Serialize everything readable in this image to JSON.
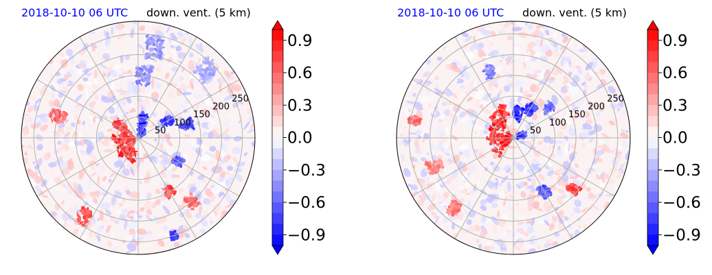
{
  "chart_data": [
    {
      "type": "heatmap",
      "projection": "polar",
      "title_date": "2018-10-10 06 UTC",
      "title_variable": "down. vent. (5 km)",
      "radial_ticks": [
        50,
        100,
        150,
        200,
        250
      ],
      "radial_max": 280,
      "angular_gridlines_deg": [
        0,
        30,
        60,
        90,
        120,
        150,
        180,
        210,
        240,
        270,
        300,
        330
      ],
      "colorbar": {
        "min": -1.0,
        "max": 1.0,
        "ticks": [
          "0.9",
          "0.6",
          "0.3",
          "0.0",
          "−0.3",
          "−0.6",
          "−0.9"
        ],
        "tick_values": [
          0.9,
          0.6,
          0.3,
          0.0,
          -0.3,
          -0.6,
          -0.9
        ],
        "colormap": "bwr",
        "extend": "both",
        "levels": 20
      },
      "features": [
        {
          "r": 35,
          "theta": 200,
          "value": 1.0,
          "size": 22
        },
        {
          "r": 40,
          "theta": 240,
          "value": 0.95,
          "size": 18
        },
        {
          "r": 28,
          "theta": 170,
          "value": 0.9,
          "size": 14
        },
        {
          "r": 55,
          "theta": 145,
          "value": 0.9,
          "size": 14
        },
        {
          "r": 20,
          "theta": 60,
          "value": -1.0,
          "size": 12
        },
        {
          "r": 45,
          "theta": 75,
          "value": -1.0,
          "size": 12
        },
        {
          "r": 80,
          "theta": 30,
          "value": -0.9,
          "size": 12
        },
        {
          "r": 120,
          "theta": 15,
          "value": -0.8,
          "size": 14
        },
        {
          "r": 150,
          "theta": 85,
          "value": -0.6,
          "size": 20
        },
        {
          "r": 220,
          "theta": 80,
          "value": -0.5,
          "size": 26
        },
        {
          "r": 230,
          "theta": 45,
          "value": -0.4,
          "size": 24
        },
        {
          "r": 200,
          "theta": 165,
          "value": 0.7,
          "size": 16
        },
        {
          "r": 230,
          "theta": 235,
          "value": 0.8,
          "size": 18
        },
        {
          "r": 150,
          "theta": 300,
          "value": 0.9,
          "size": 12
        },
        {
          "r": 200,
          "theta": 310,
          "value": 0.7,
          "size": 14
        },
        {
          "r": 110,
          "theta": 330,
          "value": -0.8,
          "size": 12
        },
        {
          "r": 250,
          "theta": 290,
          "value": -0.9,
          "size": 8
        }
      ],
      "seed": 11
    },
    {
      "type": "heatmap",
      "projection": "polar",
      "title_date": "2018-10-10 06 UTC",
      "title_variable": "down. vent. (5 km)",
      "radial_ticks": [
        50,
        100,
        150,
        200,
        250
      ],
      "radial_max": 280,
      "angular_gridlines_deg": [
        0,
        30,
        60,
        90,
        120,
        150,
        180,
        210,
        240,
        270,
        300,
        330
      ],
      "colorbar": {
        "min": -1.0,
        "max": 1.0,
        "ticks": [
          "0.9",
          "0.6",
          "0.3",
          "0.0",
          "−0.3",
          "−0.6",
          "−0.9"
        ],
        "tick_values": [
          0.9,
          0.6,
          0.3,
          0.0,
          -0.3,
          -0.6,
          -0.9
        ],
        "colormap": "bwr",
        "extend": "both",
        "levels": 20
      },
      "features": [
        {
          "r": 35,
          "theta": 160,
          "value": 1.0,
          "size": 26
        },
        {
          "r": 30,
          "theta": 200,
          "value": 1.0,
          "size": 24
        },
        {
          "r": 55,
          "theta": 130,
          "value": 0.95,
          "size": 18
        },
        {
          "r": 70,
          "theta": 110,
          "value": 0.9,
          "size": 14
        },
        {
          "r": 60,
          "theta": 80,
          "value": -1.0,
          "size": 14
        },
        {
          "r": 80,
          "theta": 60,
          "value": -0.9,
          "size": 14
        },
        {
          "r": 20,
          "theta": 20,
          "value": -1.0,
          "size": 10
        },
        {
          "r": 110,
          "theta": 40,
          "value": -0.7,
          "size": 12
        },
        {
          "r": 170,
          "theta": 110,
          "value": -0.6,
          "size": 14
        },
        {
          "r": 200,
          "theta": 200,
          "value": 0.6,
          "size": 18
        },
        {
          "r": 220,
          "theta": 230,
          "value": 0.6,
          "size": 16
        },
        {
          "r": 150,
          "theta": 300,
          "value": -0.8,
          "size": 14
        },
        {
          "r": 190,
          "theta": 320,
          "value": 0.9,
          "size": 12
        },
        {
          "r": 240,
          "theta": 170,
          "value": 0.7,
          "size": 12
        }
      ],
      "seed": 29
    }
  ]
}
